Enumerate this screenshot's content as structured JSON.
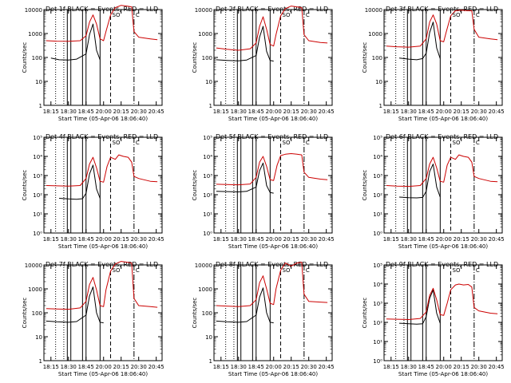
{
  "chart_data": [
    {
      "type": "line",
      "title": "Det 1f BLACK = Events, RED = LLD",
      "xlabel": "Start Time (05-Apr-06 18:06:40)",
      "ylabel": "Counts/sec",
      "yscale": "log",
      "ylim": [
        1,
        10000
      ],
      "y_ticks": [
        1,
        10,
        100,
        1000,
        10000
      ],
      "y_tick_labels": [
        "1",
        "10",
        "100",
        "1000",
        "10000"
      ],
      "x_ticks": [
        "18:15",
        "18:30",
        "18:45",
        "20:00",
        "20:15",
        "20:30",
        "20:45"
      ],
      "series": [
        {
          "name": "Events",
          "color": "#000000",
          "x": [
            "18:15",
            "18:22",
            "18:30",
            "18:37",
            "18:45",
            "18:48",
            "18:51",
            "18:54",
            "18:57"
          ],
          "values": [
            95,
            80,
            78,
            85,
            140,
            900,
            2500,
            200,
            80
          ]
        },
        {
          "name": "LLD",
          "color": "#cc0000",
          "x": [
            "18:11",
            "18:20",
            "18:30",
            "18:40",
            "18:45",
            "18:48",
            "18:51",
            "18:54",
            "18:57",
            "20:00",
            "20:02",
            "20:06",
            "20:10",
            "20:15",
            "20:20",
            "20:24",
            "20:26",
            "20:30",
            "20:40",
            "20:46"
          ],
          "values": [
            500,
            480,
            470,
            500,
            800,
            3000,
            6000,
            2500,
            600,
            500,
            1200,
            6000,
            12000,
            15000,
            14000,
            13000,
            1200,
            700,
            600,
            550
          ]
        }
      ],
      "annotations": [
        "SO",
        "C"
      ]
    },
    {
      "type": "line",
      "title": "Det 2f BLACK = Events, RED = LLD",
      "xlabel": "Start Time (05-Apr-06 18:06:40)",
      "ylabel": "Counts/sec",
      "yscale": "log",
      "ylim": [
        1,
        10000
      ],
      "y_ticks": [
        1,
        10,
        100,
        1000,
        10000
      ],
      "y_tick_labels": [
        "1",
        "10",
        "100",
        "1000",
        "10000"
      ],
      "x_ticks": [
        "18:15",
        "18:30",
        "18:45",
        "20:00",
        "20:15",
        "20:30",
        "20:45"
      ],
      "series": [
        {
          "name": "Events",
          "color": "#000000",
          "x": [
            "18:11",
            "18:20",
            "18:30",
            "18:37",
            "18:45",
            "18:48",
            "18:51",
            "18:54",
            "18:57",
            "19:60"
          ],
          "values": [
            80,
            75,
            72,
            78,
            120,
            700,
            2000,
            180,
            75,
            70
          ]
        },
        {
          "name": "LLD",
          "color": "#cc0000",
          "x": [
            "18:11",
            "18:20",
            "18:30",
            "18:40",
            "18:45",
            "18:48",
            "18:51",
            "18:54",
            "18:57",
            "20:00",
            "20:02",
            "20:06",
            "20:10",
            "20:15",
            "20:20",
            "20:24",
            "20:26",
            "20:30",
            "20:40",
            "20:46"
          ],
          "values": [
            250,
            220,
            200,
            230,
            400,
            2000,
            5000,
            1500,
            350,
            300,
            900,
            5500,
            11000,
            14000,
            13000,
            12000,
            900,
            500,
            420,
            400
          ]
        }
      ],
      "annotations": [
        "SO",
        "C"
      ]
    },
    {
      "type": "line",
      "title": "Det 3f BLACK = Events, RED = LLD",
      "xlabel": "Start Time (05-Apr-06 18:06:40)",
      "ylabel": "Counts/sec",
      "yscale": "log",
      "ylim": [
        1,
        10000
      ],
      "y_ticks": [
        1,
        10,
        100,
        1000,
        10000
      ],
      "y_tick_labels": [
        "1",
        "10",
        "100",
        "1000",
        "10000"
      ],
      "x_ticks": [
        "18:15",
        "18:30",
        "18:45",
        "20:00",
        "20:15",
        "20:30",
        "20:45"
      ],
      "series": [
        {
          "name": "Events",
          "color": "#000000",
          "x": [
            "18:22",
            "18:30",
            "18:37",
            "18:42",
            "18:45",
            "18:48",
            "18:51",
            "18:54",
            "18:57"
          ],
          "values": [
            95,
            85,
            80,
            90,
            150,
            1100,
            3000,
            250,
            90
          ]
        },
        {
          "name": "LLD",
          "color": "#cc0000",
          "x": [
            "18:11",
            "18:20",
            "18:30",
            "18:40",
            "18:45",
            "18:48",
            "18:51",
            "18:54",
            "18:57",
            "20:00",
            "20:02",
            "20:06",
            "20:10",
            "20:15",
            "20:20",
            "20:24",
            "20:26",
            "20:30",
            "20:40",
            "20:46"
          ],
          "values": [
            300,
            280,
            270,
            300,
            600,
            3000,
            6000,
            2500,
            500,
            450,
            1100,
            5500,
            9000,
            9500,
            9000,
            9000,
            1500,
            700,
            600,
            550
          ]
        }
      ],
      "annotations": [
        "SO",
        "C"
      ]
    },
    {
      "type": "line",
      "title": "Det 4f BLACK = Events, RED = LLD",
      "xlabel": "Start Time (05-Apr-06 18:06:40)",
      "ylabel": "Counts/sec",
      "yscale": "log",
      "ylim": [
        1,
        100000
      ],
      "y_ticks": [
        1,
        10,
        100,
        1000,
        10000,
        100000
      ],
      "y_tick_labels": [
        "10⁰",
        "10¹",
        "10²",
        "10³",
        "10⁴",
        "10⁵"
      ],
      "x_ticks": [
        "18:15",
        "18:30",
        "18:45",
        "20:00",
        "20:15",
        "20:30",
        "20:45"
      ],
      "series": [
        {
          "name": "Events",
          "color": "#000000",
          "x": [
            "18:22",
            "18:30",
            "18:37",
            "18:42",
            "18:45",
            "18:48",
            "18:51",
            "18:54",
            "18:57"
          ],
          "values": [
            65,
            60,
            58,
            62,
            120,
            1200,
            3500,
            200,
            65
          ]
        },
        {
          "name": "LLD",
          "color": "#cc0000",
          "x": [
            "18:11",
            "18:20",
            "18:30",
            "18:40",
            "18:45",
            "18:48",
            "18:51",
            "18:54",
            "18:57",
            "20:00",
            "20:03",
            "20:06",
            "20:10",
            "20:13",
            "20:17",
            "20:21",
            "20:24",
            "20:26",
            "20:30",
            "20:40",
            "20:46"
          ],
          "values": [
            300,
            290,
            280,
            300,
            700,
            4000,
            9000,
            2500,
            500,
            450,
            3000,
            9000,
            7000,
            12000,
            10000,
            9000,
            5000,
            900,
            700,
            500,
            480
          ]
        }
      ],
      "annotations": [
        "SO",
        "C"
      ]
    },
    {
      "type": "line",
      "title": "Det 5f BLACK = Events, RED = LLD",
      "xlabel": "Start Time (05-Apr-06 18:06:40)",
      "ylabel": "Counts/sec",
      "yscale": "log",
      "ylim": [
        1,
        100000
      ],
      "y_ticks": [
        1,
        10,
        100,
        1000,
        10000,
        100000
      ],
      "y_tick_labels": [
        "10⁰",
        "10¹",
        "10²",
        "10³",
        "10⁴",
        "10⁵"
      ],
      "x_ticks": [
        "18:15",
        "18:30",
        "18:45",
        "20:00",
        "20:15",
        "20:30",
        "20:45"
      ],
      "series": [
        {
          "name": "Events",
          "color": "#000000",
          "x": [
            "18:11",
            "18:20",
            "18:30",
            "18:37",
            "18:45",
            "18:48",
            "18:51",
            "18:54",
            "18:57",
            "19:60"
          ],
          "values": [
            150,
            145,
            140,
            150,
            250,
            1800,
            4500,
            300,
            130,
            120
          ]
        },
        {
          "name": "LLD",
          "color": "#cc0000",
          "x": [
            "18:11",
            "18:20",
            "18:30",
            "18:40",
            "18:45",
            "18:48",
            "18:51",
            "18:54",
            "18:57",
            "20:00",
            "20:03",
            "20:06",
            "20:10",
            "20:15",
            "20:20",
            "20:24",
            "20:26",
            "20:30",
            "20:40",
            "20:46"
          ],
          "values": [
            350,
            340,
            330,
            360,
            800,
            5000,
            10000,
            3000,
            600,
            550,
            3500,
            11000,
            13000,
            14000,
            13000,
            12000,
            1500,
            800,
            650,
            600
          ]
        }
      ],
      "annotations": [
        "SO",
        "C"
      ]
    },
    {
      "type": "line",
      "title": "Det 6f BLACK = Events, RED = LLD",
      "xlabel": "Start Time (05-Apr-06 18:06:40)",
      "ylabel": "Counts/sec",
      "yscale": "log",
      "ylim": [
        1,
        100000
      ],
      "y_ticks": [
        1,
        10,
        100,
        1000,
        10000,
        100000
      ],
      "y_tick_labels": [
        "10⁰",
        "10¹",
        "10²",
        "10³",
        "10⁴",
        "10⁵"
      ],
      "x_ticks": [
        "18:15",
        "18:30",
        "18:45",
        "20:00",
        "20:15",
        "20:30",
        "20:45"
      ],
      "series": [
        {
          "name": "Events",
          "color": "#000000",
          "x": [
            "18:22",
            "18:30",
            "18:37",
            "18:42",
            "18:45",
            "18:48",
            "18:51",
            "18:54",
            "18:57"
          ],
          "values": [
            75,
            70,
            68,
            72,
            150,
            1600,
            4000,
            250,
            75
          ]
        },
        {
          "name": "LLD",
          "color": "#cc0000",
          "x": [
            "18:11",
            "18:20",
            "18:30",
            "18:40",
            "18:45",
            "18:48",
            "18:51",
            "18:54",
            "18:57",
            "20:00",
            "20:03",
            "20:06",
            "20:10",
            "20:13",
            "20:17",
            "20:21",
            "20:24",
            "20:26",
            "20:30",
            "20:40",
            "20:46"
          ],
          "values": [
            300,
            280,
            270,
            300,
            700,
            4000,
            9000,
            2500,
            500,
            450,
            3500,
            9000,
            7000,
            12000,
            10000,
            9000,
            5000,
            900,
            700,
            500,
            480
          ]
        }
      ],
      "annotations": [
        "SO",
        "C"
      ]
    },
    {
      "type": "line",
      "title": "Det 7f BLACK = Events, RED = LLD",
      "xlabel": "Start Time (05-Apr-06 18:06:40)",
      "ylabel": "Counts/sec",
      "yscale": "log",
      "ylim": [
        1,
        10000
      ],
      "y_ticks": [
        1,
        10,
        100,
        1000,
        10000
      ],
      "y_tick_labels": [
        "1",
        "10",
        "100",
        "1000",
        "10000"
      ],
      "x_ticks": [
        "18:15",
        "18:30",
        "18:45",
        "20:00",
        "20:15",
        "20:30",
        "20:45"
      ],
      "series": [
        {
          "name": "Events",
          "color": "#000000",
          "x": [
            "18:11",
            "18:20",
            "18:30",
            "18:37",
            "18:45",
            "18:48",
            "18:51",
            "18:54",
            "18:57",
            "19:60"
          ],
          "values": [
            45,
            42,
            40,
            43,
            80,
            500,
            1200,
            100,
            40,
            38
          ]
        },
        {
          "name": "LLD",
          "color": "#cc0000",
          "x": [
            "18:11",
            "18:20",
            "18:30",
            "18:40",
            "18:45",
            "18:48",
            "18:51",
            "18:54",
            "18:57",
            "20:00",
            "20:02",
            "20:06",
            "20:10",
            "20:15",
            "20:20",
            "20:24",
            "20:26",
            "20:30",
            "20:40",
            "20:46"
          ],
          "values": [
            150,
            145,
            140,
            160,
            300,
            1500,
            3000,
            900,
            200,
            180,
            900,
            5500,
            11000,
            14000,
            13000,
            12000,
            400,
            200,
            180,
            170
          ]
        }
      ],
      "annotations": [
        "SO",
        "C"
      ]
    },
    {
      "type": "line",
      "title": "Det 8f BLACK = Events, RED = LLD",
      "xlabel": "Start Time (05-Apr-06 18:06:40)",
      "ylabel": "Counts/sec",
      "yscale": "log",
      "ylim": [
        1,
        10000
      ],
      "y_ticks": [
        1,
        10,
        100,
        1000,
        10000
      ],
      "y_tick_labels": [
        "1",
        "10",
        "100",
        "1000",
        "10000"
      ],
      "x_ticks": [
        "18:15",
        "18:30",
        "18:45",
        "20:00",
        "20:15",
        "20:30",
        "20:45"
      ],
      "series": [
        {
          "name": "Events",
          "color": "#000000",
          "x": [
            "18:11",
            "18:20",
            "18:30",
            "18:37",
            "18:45",
            "18:48",
            "18:51",
            "18:54",
            "18:57",
            "19:60"
          ],
          "values": [
            45,
            42,
            40,
            43,
            80,
            450,
            1100,
            100,
            40,
            38
          ]
        },
        {
          "name": "LLD",
          "color": "#cc0000",
          "x": [
            "18:11",
            "18:20",
            "18:30",
            "18:40",
            "18:45",
            "18:48",
            "18:51",
            "18:54",
            "18:57",
            "20:00",
            "20:02",
            "20:06",
            "20:10",
            "20:15",
            "20:20",
            "20:24",
            "20:26",
            "20:30",
            "20:40",
            "20:46"
          ],
          "values": [
            200,
            190,
            180,
            200,
            350,
            1800,
            3500,
            1000,
            250,
            220,
            1000,
            6000,
            12000,
            9000,
            12000,
            13000,
            600,
            300,
            280,
            270
          ]
        }
      ],
      "annotations": [
        "SO",
        "C"
      ]
    },
    {
      "type": "line",
      "title": "Det 9f BLACK = Events, RED = LLD",
      "xlabel": "Start Time (05-Apr-06 18:06:40)",
      "ylabel": "Counts/sec",
      "yscale": "log",
      "ylim": [
        1,
        100000
      ],
      "y_ticks": [
        1,
        10,
        100,
        1000,
        10000,
        100000
      ],
      "y_tick_labels": [
        "10⁰",
        "10¹",
        "10²",
        "10³",
        "10⁴",
        "10⁵"
      ],
      "x_ticks": [
        "18:15",
        "18:30",
        "18:45",
        "20:00",
        "20:15",
        "20:30",
        "20:45"
      ],
      "series": [
        {
          "name": "Events",
          "color": "#000000",
          "x": [
            "18:22",
            "18:30",
            "18:37",
            "18:42",
            "18:45",
            "18:48",
            "18:51",
            "18:54",
            "18:57"
          ],
          "values": [
            90,
            85,
            80,
            85,
            200,
            1800,
            5000,
            300,
            90
          ]
        },
        {
          "name": "LLD",
          "color": "#cc0000",
          "x": [
            "18:11",
            "18:20",
            "18:30",
            "18:40",
            "18:45",
            "18:48",
            "18:51",
            "18:54",
            "18:57",
            "20:00",
            "20:03",
            "20:06",
            "20:10",
            "20:13",
            "20:17",
            "20:21",
            "20:24",
            "20:26",
            "20:30",
            "20:40",
            "20:46"
          ],
          "values": [
            150,
            145,
            140,
            160,
            350,
            2500,
            6000,
            1500,
            250,
            230,
            1000,
            5000,
            9000,
            10000,
            9000,
            9500,
            7000,
            600,
            400,
            300,
            280
          ]
        }
      ],
      "annotations": [
        "SO",
        "C"
      ]
    }
  ]
}
